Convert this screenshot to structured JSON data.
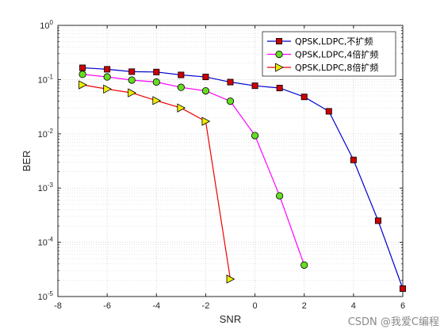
{
  "chart_data": {
    "type": "line",
    "xlabel": "SNR",
    "ylabel": "BER",
    "xlim": [
      -8,
      6
    ],
    "ylim": [
      1e-05,
      1
    ],
    "yscale": "log",
    "grid": true,
    "minor_grid": true,
    "legend_position": "top-right",
    "x_ticks": [
      -8,
      -6,
      -4,
      -2,
      0,
      2,
      4,
      6
    ],
    "x_tick_labels": [
      "-8",
      "-6",
      "-4",
      "-2",
      "0",
      "2",
      "4",
      "6"
    ],
    "y_ticks": [
      1e-05,
      0.0001,
      0.001,
      0.01,
      0.1,
      1
    ],
    "y_tick_labels": [
      {
        "base": "10",
        "exp": "-5"
      },
      {
        "base": "10",
        "exp": "-4"
      },
      {
        "base": "10",
        "exp": "-3"
      },
      {
        "base": "10",
        "exp": "-2"
      },
      {
        "base": "10",
        "exp": "-1"
      },
      {
        "base": "10",
        "exp": "0"
      }
    ],
    "series": [
      {
        "name": "QPSK,LDPC,不扩频",
        "color": "#0000cc",
        "marker": "square",
        "marker_color": "#cc0000",
        "x": [
          -7,
          -6,
          -5,
          -4,
          -3,
          -2,
          -1,
          0,
          1,
          2,
          3,
          4,
          5,
          6
        ],
        "y": [
          0.165,
          0.155,
          0.14,
          0.138,
          0.122,
          0.112,
          0.09,
          0.077,
          0.07,
          0.048,
          0.026,
          0.0033,
          0.00025,
          1.4e-05
        ]
      },
      {
        "name": "QPSK,LDPC,4倍扩频",
        "color": "#ff00ff",
        "marker": "circle",
        "marker_color": "#66dd22",
        "x": [
          -7,
          -6,
          -5,
          -4,
          -3,
          -2,
          -1,
          0,
          1,
          2
        ],
        "y": [
          0.125,
          0.112,
          0.098,
          0.09,
          0.072,
          0.062,
          0.04,
          0.0093,
          0.00072,
          3.8e-05
        ]
      },
      {
        "name": "QPSK,LDPC,8倍扩频",
        "color": "#ee0000",
        "marker": "triangle-right",
        "marker_color": "#eeee00",
        "x": [
          -7,
          -6,
          -5,
          -4,
          -3,
          -2,
          -1
        ],
        "y": [
          0.08,
          0.067,
          0.057,
          0.041,
          0.03,
          0.017,
          2.1e-05
        ]
      }
    ]
  },
  "watermark": "CSDN @我爱C编程"
}
